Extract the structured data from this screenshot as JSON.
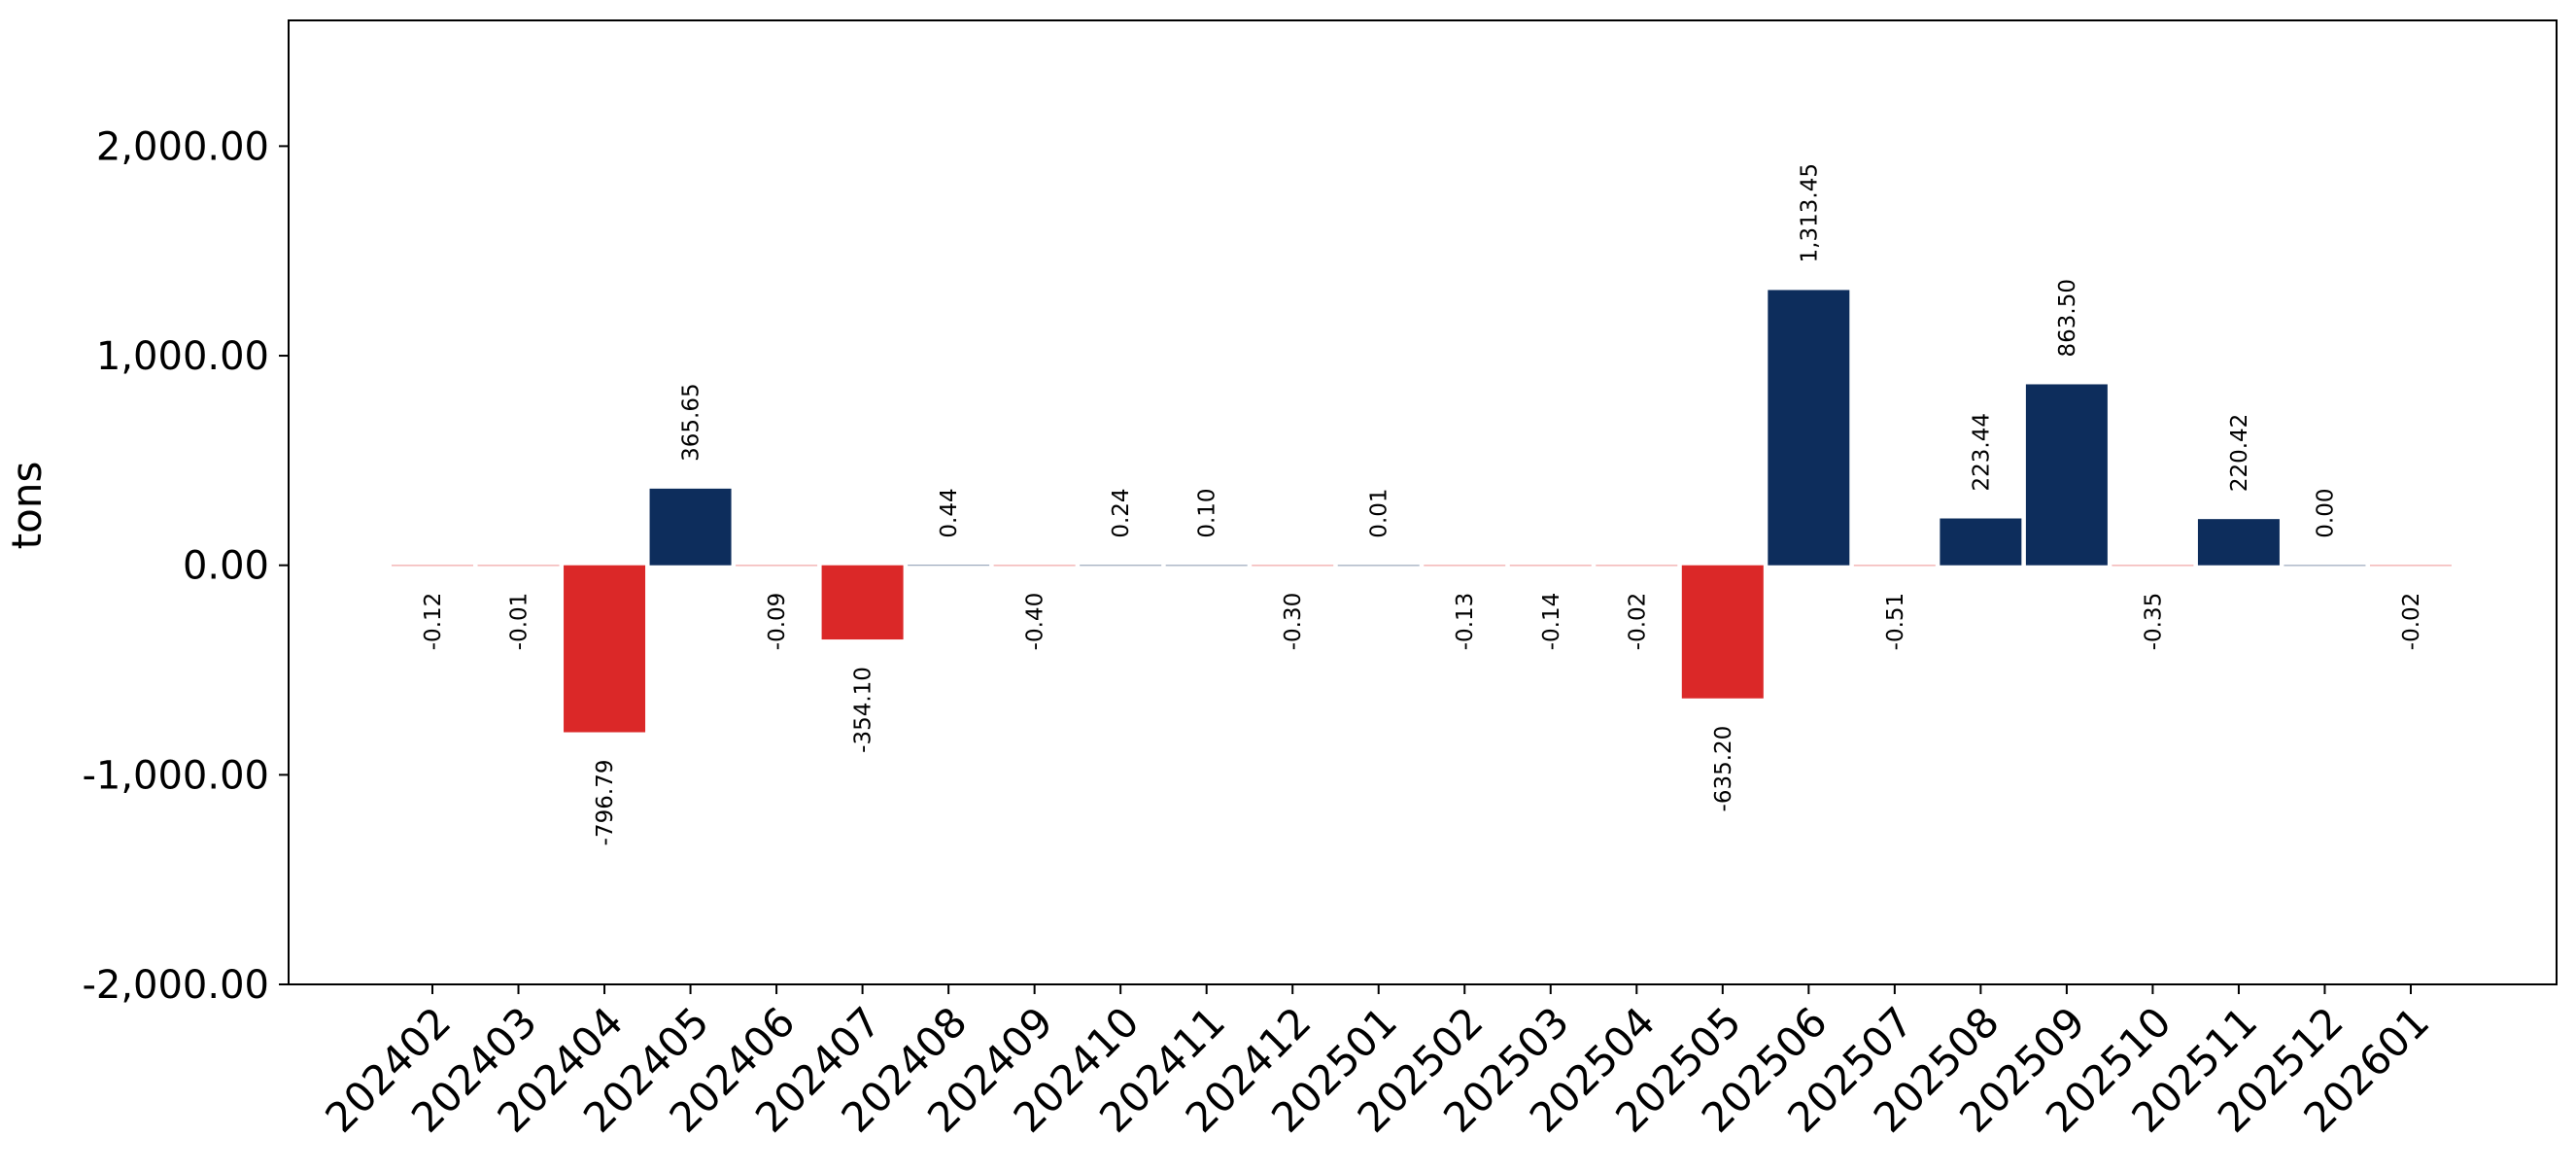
{
  "chart_data": {
    "type": "bar",
    "title": "",
    "xlabel": "",
    "ylabel": "tons",
    "ylim": [
      -2000,
      2600
    ],
    "yticks": [
      -2000,
      -1000,
      0,
      1000,
      2000
    ],
    "ytick_labels": [
      "-2,000.00",
      "-1,000.00",
      "0.00",
      "1,000.00",
      "2,000.00"
    ],
    "grid": false,
    "legend": "none",
    "colors": {
      "positive": "#0d2d5c",
      "negative": "#db2828"
    },
    "categories": [
      "202402",
      "202403",
      "202404",
      "202405",
      "202406",
      "202407",
      "202408",
      "202409",
      "202410",
      "202411",
      "202412",
      "202501",
      "202502",
      "202503",
      "202504",
      "202505",
      "202506",
      "202507",
      "202508",
      "202509",
      "202510",
      "202511",
      "202512",
      "202601"
    ],
    "values": [
      -0.12,
      -0.01,
      -796.79,
      365.65,
      -0.09,
      -354.1,
      0.44,
      -0.4,
      0.24,
      0.1,
      -0.3,
      0.01,
      -0.13,
      -0.14,
      -0.02,
      -635.2,
      1313.45,
      -0.51,
      223.44,
      863.5,
      -0.35,
      220.42,
      0.0,
      -0.02
    ],
    "value_labels": [
      "-0.12",
      "-0.01",
      "-796.79",
      "365.65",
      "-0.09",
      "-354.10",
      "0.44",
      "-0.40",
      "0.24",
      "0.10",
      "-0.30",
      "0.01",
      "-0.13",
      "-0.14",
      "-0.02",
      "-635.20",
      "1,313.45",
      "-0.51",
      "223.44",
      "863.50",
      "-0.35",
      "220.42",
      "0.00",
      "-0.02"
    ]
  }
}
